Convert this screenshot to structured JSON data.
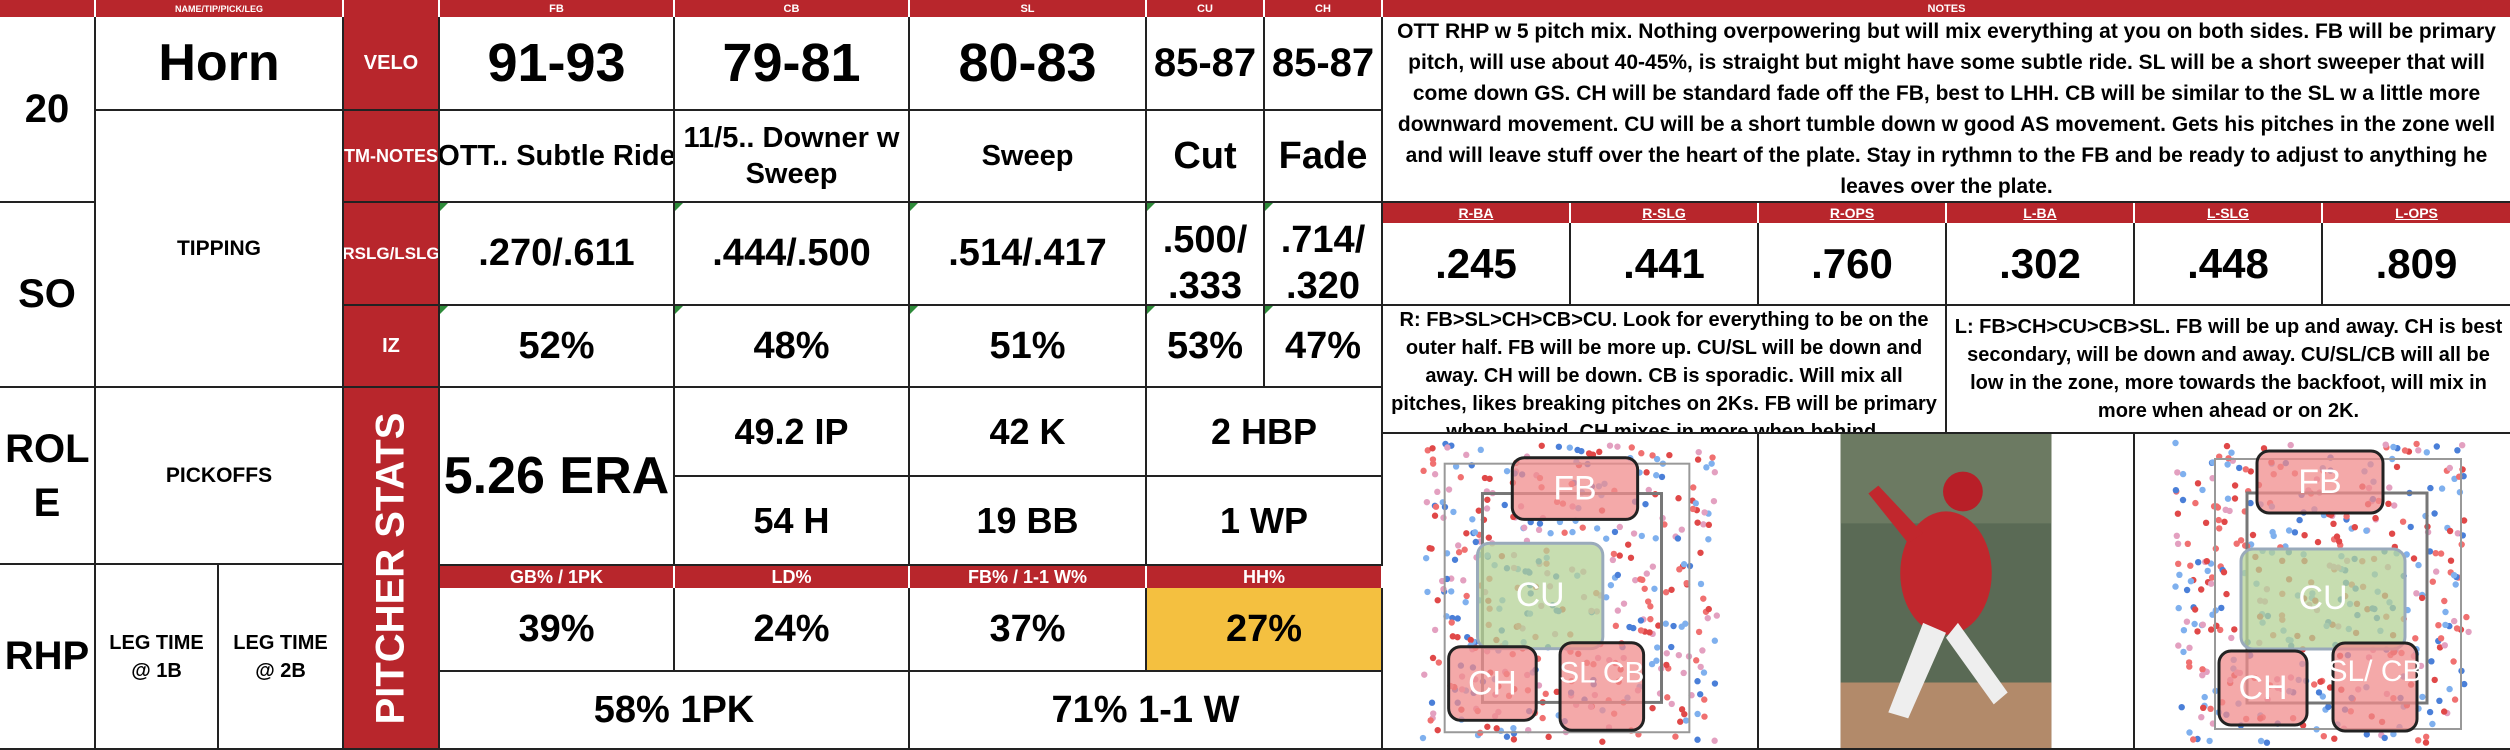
{
  "headers": {
    "name": "NAME/TIP/PICK/LEG",
    "fb": "FB",
    "cb": "CB",
    "sl": "SL",
    "cu": "CU",
    "ch": "CH",
    "notes": "NOTES"
  },
  "left": {
    "number": "20",
    "name": "Horn",
    "so": "SO",
    "tipping": "TIPPING",
    "role": "ROL E",
    "pickoffs": "PICKOFFS",
    "hand": "RHP",
    "leg1b": "LEG TIME @ 1B",
    "leg2b": "LEG TIME @ 2B"
  },
  "rowlabels": {
    "velo": "VELO",
    "tmnotes": "TM-NOTES",
    "rslg": "RSLG/LSLG",
    "iz": "IZ",
    "pitcher_stats": "PITCHER STATS"
  },
  "velo": {
    "fb": "91-93",
    "cb": "79-81",
    "sl": "80-83",
    "cu": "85-87",
    "ch": "85-87"
  },
  "tmnotes": {
    "fb": "OTT.. Subtle Ride",
    "cb": "11/5.. Downer w Sweep",
    "sl": "Sweep",
    "cu": "Cut",
    "ch": "Fade"
  },
  "slg": {
    "fb": ".270/.611",
    "cb": ".444/.500",
    "sl": ".514/.417",
    "cu": ".500/ .333",
    "ch": ".714/ .320"
  },
  "iz": {
    "fb": "52%",
    "cb": "48%",
    "sl": "51%",
    "cu": "53%",
    "ch": "47%"
  },
  "stats": {
    "era": "5.26 ERA",
    "ip": "49.2 IP",
    "k": "42 K",
    "hbp": "2 HBP",
    "h": "54 H",
    "bb": "19 BB",
    "wp": "1 WP"
  },
  "rates_headers": {
    "gb": "GB% / 1PK",
    "ld": "LD%",
    "fb": "FB% / 1-1 W%",
    "hh": "HH%"
  },
  "rates": {
    "gb": "39%",
    "ld": "24%",
    "fb": "37%",
    "hh": "27%",
    "pk1": "58% 1PK",
    "w11": "71% 1-1 W"
  },
  "notes": {
    "main": "OTT RHP w 5 pitch mix. Nothing overpowering but will mix everything at you on both sides. FB will be primary pitch, will use about 40-45%, is straight but might have some subtle ride. SL will be a short sweeper that will come down GS. CH will be standard fade off the FB, best to LHH. CB will be similar to the SL w a little more downward movement. CU will be a short tumble down w good AS movement. Gets his pitches in the zone well and will leave stuff over the heart of the plate. Stay in rythmn to the FB and be ready to adjust to anything he leaves over the plate.",
    "r": "R: FB>SL>CH>CB>CU. Look for everything to be on the outer half. FB will be more up. CU/SL will be down and away. CH will be down. CB is sporadic. Will mix all pitches, likes breaking pitches on 2Ks. FB will be primary when behind, CH mixes in more when behind.",
    "l": "L: FB>CH>CU>CB>SL. FB will be up and away. CH is best secondary, will be down and away. CU/SL/CB will all be low in the zone, more towards the backfoot, will mix in more when ahead or on 2K."
  },
  "split_headers": {
    "rba": "R-BA",
    "rslg": "R-SLG",
    "rops": "R-OPS",
    "lba": "L-BA",
    "lslg": "L-SLG",
    "lops": "L-OPS"
  },
  "splits": {
    "rba": ".245",
    "rslg": ".441",
    "rops": ".760",
    "lba": ".302",
    "lslg": ".448",
    "lops": ".809"
  },
  "zones": {
    "fb": "FB",
    "cu": "CU",
    "ch": "CH",
    "sl_cb_r": "SL CB",
    "sl_cb_l": "SL/ CB"
  },
  "colors": {
    "red": "#b8262c",
    "yellow": "#f4c040"
  }
}
